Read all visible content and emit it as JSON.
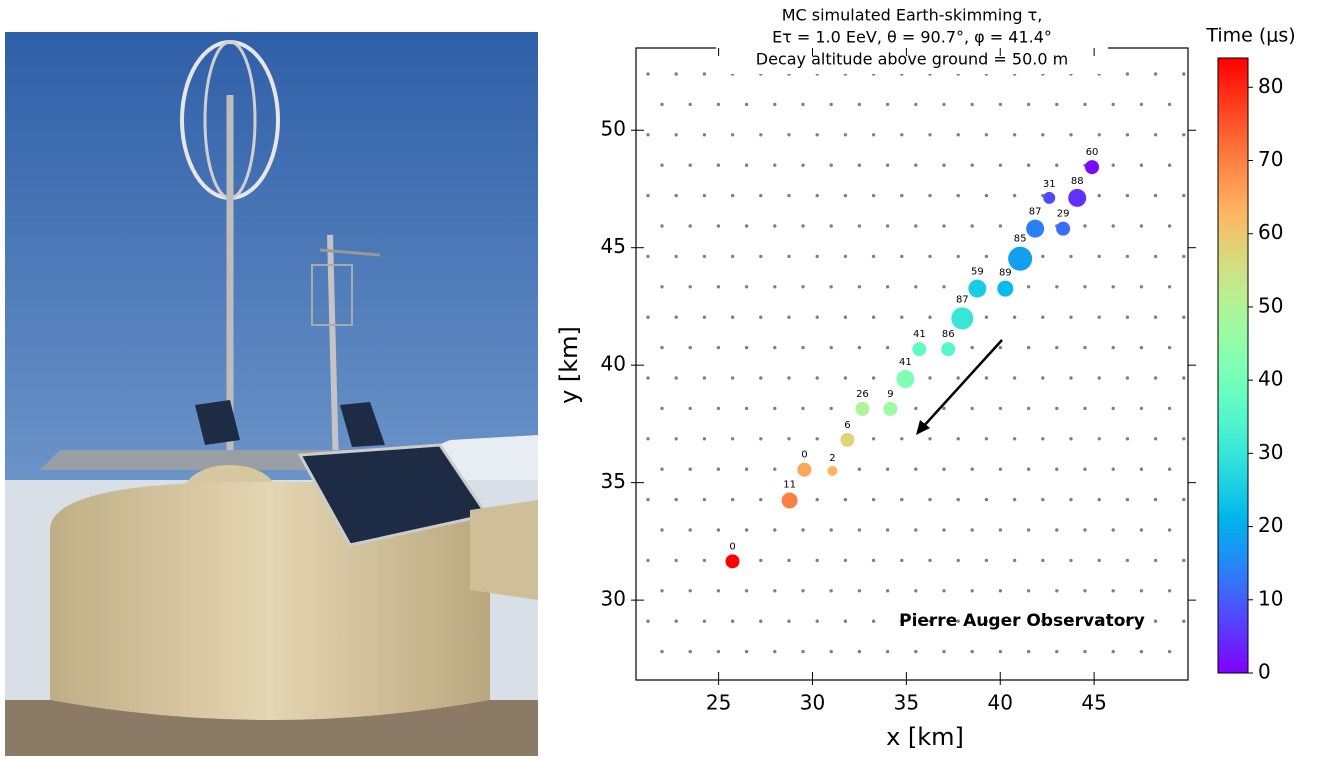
{
  "chart_data": {
    "type": "scatter",
    "title": [
      "MC simulated  Earth-skimming τ,",
      "Eτ = 1.0 EeV, θ = 90.7°, φ = 41.4°",
      "Decay altitude above ground = 50.0 m"
    ],
    "xlabel": "x [km]",
    "ylabel": "y [km]",
    "annotation": "Pierre Auger Observatory",
    "colorbar_label": "Time (μs)",
    "colormap": "rainbow",
    "clim": [
      0,
      84
    ],
    "cticks": [
      0,
      10,
      20,
      30,
      40,
      50,
      60,
      70,
      80
    ],
    "xlim": [
      20.6,
      50.0
    ],
    "ylim": [
      26.6,
      53.5
    ],
    "xticks": [
      25,
      30,
      35,
      40,
      45
    ],
    "yticks": [
      30,
      35,
      40,
      45,
      50
    ],
    "x": [
      25.74,
      28.78,
      29.57,
      31.06,
      31.86,
      32.66,
      34.15,
      34.95,
      35.69,
      37.23,
      37.98,
      38.78,
      40.27,
      41.06,
      41.86,
      43.35,
      42.61,
      44.1,
      44.89
    ],
    "y": [
      31.65,
      34.24,
      35.55,
      35.5,
      36.82,
      38.14,
      38.14,
      39.41,
      40.68,
      40.68,
      41.99,
      43.26,
      43.26,
      44.53,
      45.81,
      45.81,
      47.12,
      47.12,
      48.43
    ],
    "time": [
      84,
      70,
      65,
      63,
      58,
      50,
      47,
      42,
      37,
      35,
      30,
      25,
      22,
      18,
      14,
      12,
      8,
      5,
      1
    ],
    "sizes": [
      7,
      8,
      7,
      5,
      7,
      7,
      7,
      9,
      7,
      7,
      11,
      9,
      8,
      12,
      9,
      7,
      6,
      9,
      7
    ],
    "point_labels": [
      0,
      11,
      0,
      2,
      6,
      26,
      9,
      41,
      41,
      86,
      87,
      59,
      89,
      85,
      87,
      29,
      31,
      88,
      60
    ]
  }
}
